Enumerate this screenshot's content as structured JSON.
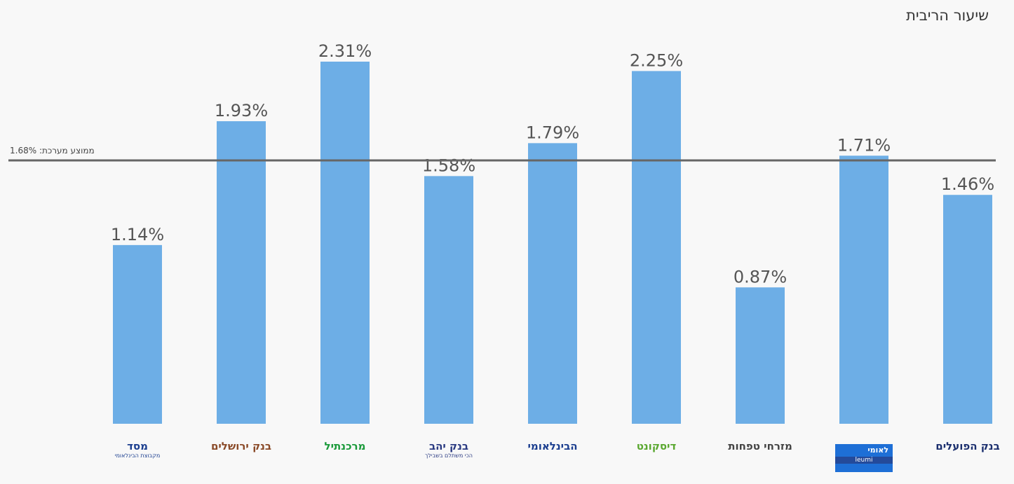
{
  "title": "שיעור הריבית",
  "chart_data": {
    "type": "bar",
    "title": "שיעור הריבית",
    "categories": [
      "מסד",
      "בנק ירושלים",
      "מרכנתיל",
      "בנק יהב",
      "הבינלאומי",
      "דיסקונט",
      "מזרחי טפחות",
      "לאומי",
      "בנק הפועלים"
    ],
    "values": [
      1.14,
      1.93,
      2.31,
      1.58,
      1.79,
      2.25,
      0.87,
      1.71,
      1.46
    ],
    "value_labels": [
      "1.14%",
      "1.93%",
      "2.31%",
      "1.58%",
      "1.79%",
      "2.25%",
      "0.87%",
      "1.71%",
      "1.46%"
    ],
    "reference_line": {
      "value": 1.68,
      "label": "ממוצע מערכת: 1.68%"
    },
    "ylim": [
      0,
      2.31
    ],
    "xlabel": "",
    "ylabel": "",
    "grid": false,
    "bar_color": "#6daee6",
    "line_color": "#666666"
  },
  "logos": [
    {
      "main": "מסד",
      "sub": "מקבוצת הבינלאומי",
      "color": "#1b3e8f"
    },
    {
      "main": "בנק ירושלים",
      "sub": "",
      "color": "#8a4a28"
    },
    {
      "main": "מרכנתיל",
      "sub": "",
      "color": "#1a9a3a"
    },
    {
      "main": "בנק יהב",
      "sub": "הכי משתלם בשבילך",
      "color": "#2b3b82"
    },
    {
      "main": "הבינלאומי",
      "sub": "",
      "color": "#1b3e8f"
    },
    {
      "main": "דיסקונט",
      "sub": "",
      "color": "#5aa830"
    },
    {
      "main": "מזרחי טפחות",
      "sub": "",
      "color": "#444444"
    },
    {
      "main": "לאומי",
      "sub": "leumi",
      "color": "#ffffff"
    },
    {
      "main": "בנק הפועלים",
      "sub": "",
      "color": "#1b2f6e"
    }
  ]
}
